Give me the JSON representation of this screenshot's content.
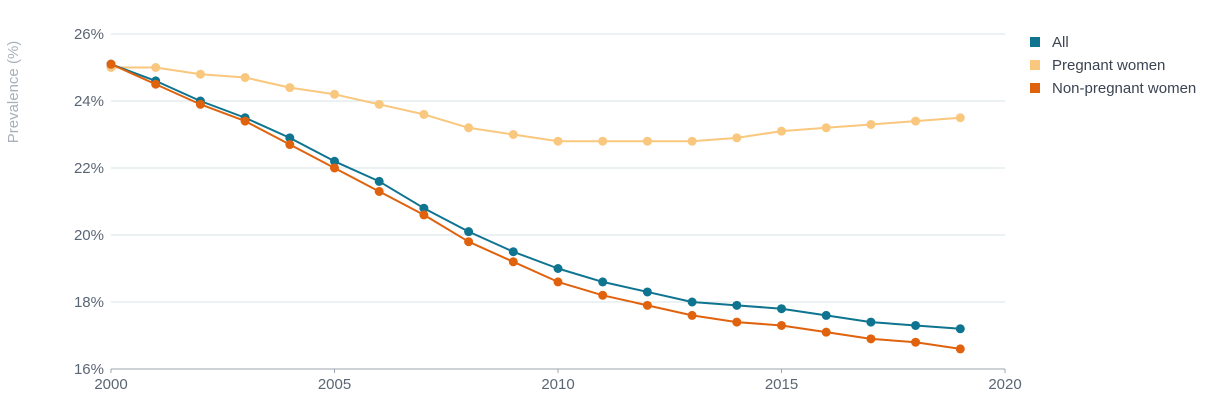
{
  "chart_data": {
    "type": "line",
    "title": "",
    "xlabel": "",
    "ylabel": "Prevalence (%)",
    "xlim": [
      2000,
      2020
    ],
    "ylim": [
      16,
      26
    ],
    "x_ticks": [
      "2000",
      "2005",
      "2010",
      "2015",
      "2020"
    ],
    "y_ticks": [
      "16%",
      "18%",
      "20%",
      "22%",
      "24%",
      "26%"
    ],
    "grid": true,
    "legend_position": "top-right",
    "x": [
      2000,
      2001,
      2002,
      2003,
      2004,
      2005,
      2006,
      2007,
      2008,
      2009,
      2010,
      2011,
      2012,
      2013,
      2014,
      2015,
      2016,
      2017,
      2018,
      2019
    ],
    "series": [
      {
        "name": "Pregnant women",
        "color": "#f9c77d",
        "values": [
          25.0,
          25.0,
          24.8,
          24.7,
          24.4,
          24.2,
          23.9,
          23.6,
          23.2,
          23.0,
          22.8,
          22.8,
          22.8,
          22.8,
          22.9,
          23.1,
          23.2,
          23.3,
          23.4,
          23.5
        ]
      },
      {
        "name": "All",
        "color": "#0e7490",
        "values": [
          25.1,
          24.6,
          24.0,
          23.5,
          22.9,
          22.2,
          21.6,
          20.8,
          20.1,
          19.5,
          19.0,
          18.6,
          18.3,
          18.0,
          17.9,
          17.8,
          17.6,
          17.4,
          17.3,
          17.2
        ]
      },
      {
        "name": "Non-pregnant women",
        "color": "#e0620d",
        "values": [
          25.1,
          24.5,
          23.9,
          23.4,
          22.7,
          22.0,
          21.3,
          20.6,
          19.8,
          19.2,
          18.6,
          18.2,
          17.9,
          17.6,
          17.4,
          17.3,
          17.1,
          16.9,
          16.8,
          16.6
        ]
      }
    ],
    "legend": [
      {
        "name": "All",
        "color": "#0e7490"
      },
      {
        "name": "Pregnant women",
        "color": "#f9c77d"
      },
      {
        "name": "Non-pregnant women",
        "color": "#e0620d"
      }
    ]
  }
}
